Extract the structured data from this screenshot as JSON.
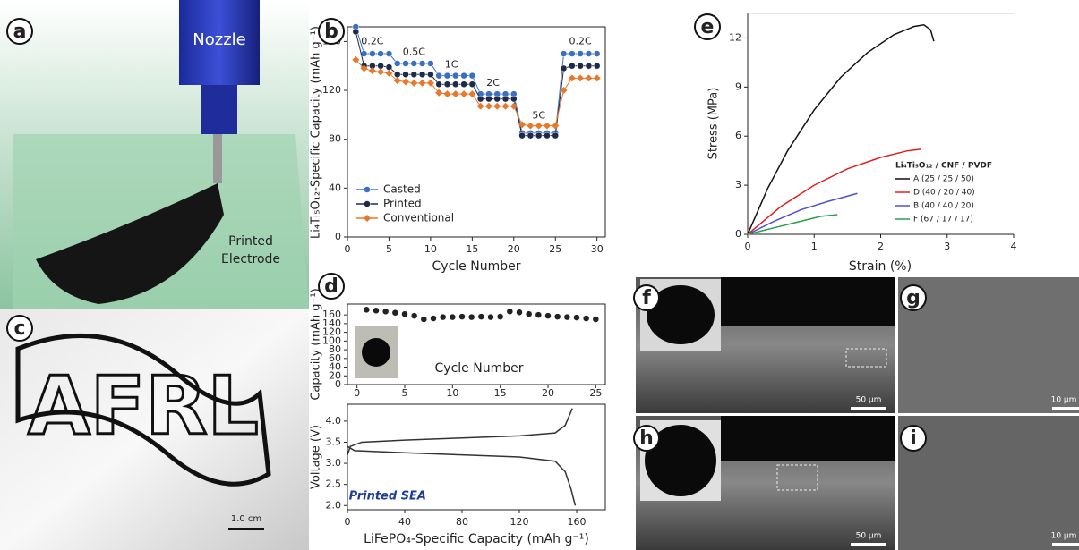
{
  "panel_labels": [
    "a",
    "b",
    "c",
    "d",
    "e",
    "f",
    "g",
    "h",
    "i"
  ],
  "photo_labels": {
    "nozzle": "Nozzle",
    "electrode_1": "Printed",
    "electrode_2": "Electrode",
    "afrl": "AFRL",
    "scale_c": "1.0 cm",
    "scale_f": "50 μm",
    "scale_g": "10 μm",
    "scale_h": "50 μm",
    "scale_i": "10 μm"
  },
  "chart_data": [
    {
      "type": "line",
      "marker": true,
      "x_label": "Cycle Number",
      "y_label": "Li₄Ti₅O₁₂-Specific Capacity (mAh g⁻¹)",
      "x": [
        1,
        2,
        3,
        4,
        5,
        6,
        7,
        8,
        9,
        10,
        11,
        12,
        13,
        14,
        15,
        16,
        17,
        18,
        19,
        20,
        21,
        22,
        23,
        24,
        25,
        26,
        27,
        28,
        29,
        30
      ],
      "series": [
        {
          "name": "Casted",
          "color": "#3a6fc4",
          "shape": "circle",
          "values": [
            172,
            150,
            150,
            150,
            150,
            142,
            142,
            142,
            142,
            142,
            132,
            132,
            132,
            132,
            132,
            117,
            117,
            117,
            117,
            117,
            85,
            85,
            85,
            85,
            85,
            150,
            150,
            150,
            150,
            150
          ]
        },
        {
          "name": "Printed",
          "color": "#1e2a4a",
          "shape": "circle",
          "values": [
            168,
            140,
            140,
            140,
            139,
            133,
            133,
            133,
            133,
            133,
            125,
            125,
            125,
            125,
            125,
            113,
            113,
            113,
            113,
            113,
            83,
            83,
            83,
            83,
            83,
            138,
            140,
            140,
            140,
            140
          ]
        },
        {
          "name": "Conventional",
          "color": "#e8792b",
          "shape": "diamond",
          "values": [
            145,
            138,
            136,
            135,
            134,
            128,
            127,
            126,
            126,
            126,
            118,
            117,
            117,
            117,
            117,
            107,
            107,
            107,
            107,
            107,
            92,
            91,
            91,
            91,
            91,
            120,
            130,
            130,
            130,
            130
          ]
        }
      ],
      "annotations": [
        "0.2C",
        "0.5C",
        "1C",
        "2C",
        "5C",
        "0.2C"
      ],
      "xlim": [
        0,
        31
      ],
      "xticks": [
        0,
        5,
        10,
        15,
        20,
        25,
        30
      ],
      "ylim": [
        0,
        172
      ],
      "yticks": [
        0,
        40,
        80,
        120,
        160
      ],
      "legend": "lower left"
    },
    {
      "type": "scatter",
      "marker": true,
      "x_label": "Cycle Number",
      "y_label": "Capacity (mAh g⁻¹)",
      "x": [
        1,
        2,
        3,
        4,
        5,
        6,
        7,
        8,
        9,
        10,
        11,
        12,
        13,
        14,
        15,
        16,
        17,
        18,
        19,
        20,
        21,
        22,
        23,
        24,
        25
      ],
      "series": [
        {
          "color": "#222222",
          "shape": "circle",
          "values": [
            172,
            170,
            168,
            165,
            162,
            158,
            150,
            152,
            155,
            155,
            156,
            155,
            156,
            155,
            156,
            168,
            166,
            162,
            160,
            158,
            156,
            155,
            154,
            152,
            150
          ]
        }
      ],
      "xlim": [
        -1,
        26
      ],
      "xticks": [
        0,
        5,
        10,
        15,
        20,
        25
      ],
      "ylim": [
        0,
        185
      ],
      "yticks": [
        0,
        20,
        40,
        60,
        80,
        100,
        120,
        140,
        160
      ]
    },
    {
      "type": "line",
      "marker": false,
      "x_label": "LiFePO₄-Specific Capacity (mAh g⁻¹)",
      "y_label": "Voltage (V)",
      "series": [
        {
          "color": "#333333",
          "x": [
            0,
            2,
            10,
            40,
            80,
            120,
            145,
            152,
            157
          ],
          "values": [
            3.2,
            3.4,
            3.5,
            3.55,
            3.6,
            3.65,
            3.72,
            3.9,
            4.3
          ]
        },
        {
          "color": "#333333",
          "x": [
            0,
            5,
            40,
            80,
            120,
            145,
            152,
            156,
            159
          ],
          "values": [
            3.4,
            3.3,
            3.25,
            3.2,
            3.15,
            3.05,
            2.8,
            2.4,
            2.0
          ]
        }
      ],
      "annotations": [
        "Printed SEA"
      ],
      "xlim": [
        0,
        180
      ],
      "xticks": [
        0,
        40,
        80,
        120,
        160
      ],
      "ylim": [
        1.9,
        4.4
      ],
      "yticks": [
        {
          "value": 2,
          "label": "2.0"
        },
        2.5,
        {
          "value": 3,
          "label": "3.0"
        },
        3.5,
        {
          "value": 4,
          "label": "4.0"
        }
      ]
    },
    {
      "type": "line",
      "marker": false,
      "x_label": "Strain (%)",
      "y_label": "Stress (MPa)",
      "legend_title": "Li₄Ti₅O₁₂ / CNF / PVDF",
      "series": [
        {
          "name": "A (25 / 25 / 50)",
          "color": "#111111",
          "x": [
            0,
            0.3,
            0.6,
            1,
            1.4,
            1.8,
            2.2,
            2.5,
            2.65,
            2.75,
            2.8
          ],
          "values": [
            0,
            2.8,
            5.1,
            7.6,
            9.6,
            11.1,
            12.2,
            12.7,
            12.8,
            12.5,
            11.8
          ]
        },
        {
          "name": "D (40 / 20 / 40)",
          "color": "#e02020",
          "x": [
            0,
            0.5,
            1,
            1.5,
            2,
            2.4,
            2.6
          ],
          "values": [
            0,
            1.7,
            3.0,
            4.0,
            4.7,
            5.1,
            5.2
          ]
        },
        {
          "name": "B (40 / 40 / 20)",
          "color": "#5050d0",
          "x": [
            0,
            0.4,
            0.8,
            1.2,
            1.65
          ],
          "values": [
            0,
            0.8,
            1.5,
            2.0,
            2.5
          ]
        },
        {
          "name": "F (67 / 17 / 17)",
          "color": "#2aa050",
          "x": [
            0,
            0.4,
            0.8,
            1.1,
            1.35
          ],
          "values": [
            0,
            0.4,
            0.8,
            1.1,
            1.2
          ]
        }
      ],
      "xlim": [
        0,
        4
      ],
      "xticks": [
        0,
        1,
        2,
        3,
        4
      ],
      "ylim": [
        0,
        13.5
      ],
      "yticks": [
        0,
        3,
        6,
        9,
        12
      ],
      "legend": "lower right"
    }
  ]
}
